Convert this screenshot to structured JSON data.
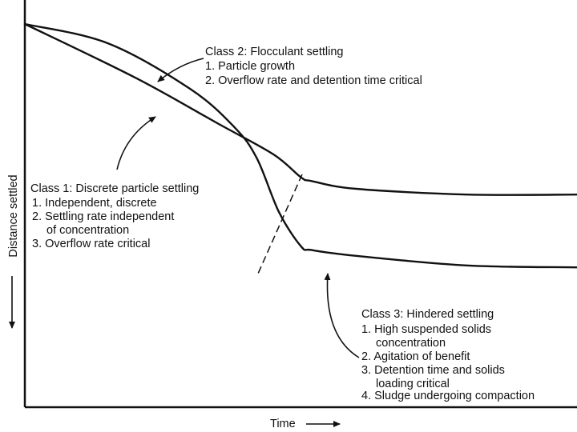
{
  "chart_data": {
    "type": "line",
    "xlabel": "Time",
    "ylabel": "Distance settled",
    "y_direction": "downward",
    "grid": false,
    "legend": "none",
    "x_ticks": "none",
    "y_ticks": "none",
    "series": [
      {
        "id": "class1",
        "points": [
          [
            0.0,
            0.0
          ],
          [
            0.2,
            0.14
          ],
          [
            0.35,
            0.26
          ],
          [
            0.45,
            0.34
          ],
          [
            0.5,
            0.4
          ],
          [
            0.52,
            0.41
          ],
          [
            0.6,
            0.43
          ],
          [
            0.8,
            0.445
          ],
          [
            1.0,
            0.445
          ]
        ]
      },
      {
        "id": "class2-3",
        "points": [
          [
            0.0,
            0.0
          ],
          [
            0.15,
            0.05
          ],
          [
            0.3,
            0.17
          ],
          [
            0.38,
            0.27
          ],
          [
            0.42,
            0.35
          ],
          [
            0.46,
            0.49
          ],
          [
            0.5,
            0.58
          ],
          [
            0.52,
            0.59
          ],
          [
            0.6,
            0.605
          ],
          [
            0.8,
            0.63
          ],
          [
            1.0,
            0.635
          ]
        ]
      }
    ],
    "annotations": [
      {
        "id": "class2",
        "lines": [
          "Class 2: Flocculant settling",
          "1. Particle growth",
          "2. Overflow rate and detention time critical"
        ]
      },
      {
        "id": "class1",
        "lines": [
          "Class 1: Discrete particle settling",
          "1. Independent, discrete",
          "2. Settling rate independent",
          "of concentration",
          "3. Overflow rate critical"
        ]
      },
      {
        "id": "class3",
        "lines": [
          "Class 3: Hindered settling",
          "1. High suspended solids",
          "concentration",
          "2. Agitation of benefit",
          "3. Detention time and solids",
          "loading critical",
          "4. Sludge undergoing compaction"
        ]
      }
    ]
  }
}
